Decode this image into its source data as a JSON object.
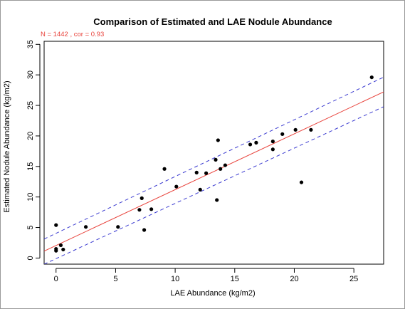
{
  "chart_data": {
    "type": "scatter",
    "title": "Comparison of Estimated and LAE Nodule Abundance",
    "xlabel": "LAE Abundance (kg/m2)",
    "ylabel": "Estimated Nodule Abundance (kg/m2)",
    "annotation": "N = 1442 , cor = 0.93",
    "xlim": [
      -1,
      27.5
    ],
    "ylim": [
      -1,
      35.5
    ],
    "xticks": [
      0,
      5,
      10,
      15,
      20,
      25
    ],
    "yticks": [
      0,
      5,
      10,
      15,
      20,
      25,
      30,
      35
    ],
    "grid": false,
    "colors": {
      "points": "#000000",
      "fit": "#e8413a",
      "band": "#3a3ad0",
      "annotation": "#e8413a"
    },
    "points": [
      {
        "x": 0.0,
        "y": 5.4
      },
      {
        "x": 0.0,
        "y": 1.5
      },
      {
        "x": 0.0,
        "y": 1.2
      },
      {
        "x": 0.4,
        "y": 2.1
      },
      {
        "x": 0.6,
        "y": 1.4
      },
      {
        "x": 2.5,
        "y": 5.1
      },
      {
        "x": 5.2,
        "y": 5.1
      },
      {
        "x": 7.0,
        "y": 7.9
      },
      {
        "x": 7.2,
        "y": 9.8
      },
      {
        "x": 7.4,
        "y": 4.6
      },
      {
        "x": 8.0,
        "y": 8.0
      },
      {
        "x": 9.1,
        "y": 14.6
      },
      {
        "x": 10.1,
        "y": 11.7
      },
      {
        "x": 11.8,
        "y": 14.0
      },
      {
        "x": 12.1,
        "y": 11.2
      },
      {
        "x": 12.6,
        "y": 13.9
      },
      {
        "x": 13.4,
        "y": 16.1
      },
      {
        "x": 13.5,
        "y": 9.5
      },
      {
        "x": 13.6,
        "y": 19.3
      },
      {
        "x": 13.8,
        "y": 14.6
      },
      {
        "x": 14.2,
        "y": 15.2
      },
      {
        "x": 16.3,
        "y": 18.6
      },
      {
        "x": 16.8,
        "y": 18.9
      },
      {
        "x": 18.2,
        "y": 19.1
      },
      {
        "x": 18.2,
        "y": 17.8
      },
      {
        "x": 19.0,
        "y": 20.3
      },
      {
        "x": 20.1,
        "y": 21.0
      },
      {
        "x": 20.6,
        "y": 12.4
      },
      {
        "x": 21.4,
        "y": 21.0
      },
      {
        "x": 26.5,
        "y": 29.6
      }
    ],
    "fit_line": {
      "intercept": 2.05,
      "slope": 0.915
    },
    "band": {
      "lower_intercept": -0.1,
      "lower_slope": 0.905,
      "upper_intercept": 4.05,
      "upper_slope": 0.93
    }
  }
}
